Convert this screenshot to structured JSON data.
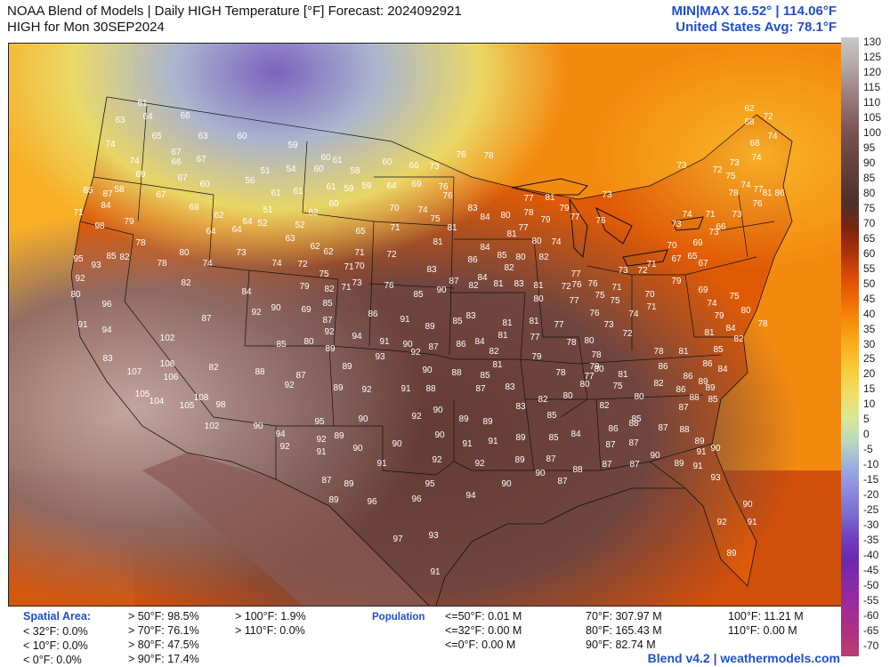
{
  "header": {
    "title_line1": "NOAA Blend of Models | Daily HIGH Temperature [°F] Forecast: 2024092921",
    "title_line2": "HIGH for Mon 30SEP2024",
    "minmax": "MIN|MAX 16.52°  |  114.06°F",
    "us_avg": "United States Avg: 78.1°F"
  },
  "colorbar": {
    "labels": [
      "130",
      "125",
      "120",
      "115",
      "110",
      "105",
      "100",
      "95",
      "90",
      "85",
      "80",
      "75",
      "70",
      "65",
      "60",
      "55",
      "50",
      "45",
      "40",
      "35",
      "30",
      "25",
      "20",
      "15",
      "10",
      "5",
      "0",
      "-5",
      "-10",
      "-15",
      "-20",
      "-25",
      "-30",
      "-35",
      "-40",
      "-45",
      "-50",
      "-55",
      "-60",
      "-65",
      "-70"
    ],
    "colors": [
      "#c9c9c9",
      "#b7aeae",
      "#a48c8c",
      "#8f6d6d",
      "#7a5252",
      "#6b4442",
      "#5c3a36",
      "#4f302b",
      "#7a2410",
      "#a83208",
      "#d84a05",
      "#ee6a05",
      "#f88f0a",
      "#fbb020",
      "#f9cc3a",
      "#eede6a",
      "#d8e896",
      "#b8d8c0",
      "#9ab0e0",
      "#8c8ce0",
      "#7a6fcf",
      "#7040c0",
      "#6a2ab0",
      "#8a2aa8",
      "#a02a9a",
      "#b03080",
      "#b84070"
    ]
  },
  "footer": {
    "spatial_title": "Spatial Area:",
    "spatial_col1": [
      "< 32°F: 0.0%",
      "< 10°F: 0.0%",
      "< 0°F: 0.0%"
    ],
    "spatial_col2": [
      "> 50°F: 98.5%",
      "> 70°F: 76.1%",
      "> 80°F: 47.5%",
      "> 90°F: 17.4%"
    ],
    "spatial_col3": [
      "> 100°F: 1.9%",
      "> 110°F: 0.0%"
    ],
    "population_title": "Population",
    "pop_col1": [
      "<=50°F: 0.01 M",
      "<=32°F: 0.00 M",
      "<=0°F: 0.00 M"
    ],
    "pop_col2": [
      "70°F: 307.97 M",
      "80°F: 165.43 M",
      "90°F: 82.74 M"
    ],
    "pop_col3": [
      "100°F: 11.21 M",
      "110°F: 0.00 M"
    ],
    "brand": "Blend v4.2 | weathermodels.com"
  },
  "map_labels": [
    [
      "61",
      160,
      115
    ],
    [
      "64",
      166,
      130
    ],
    [
      "66",
      208,
      129
    ],
    [
      "63",
      135,
      134
    ],
    [
      "65",
      176,
      152
    ],
    [
      "63",
      228,
      152
    ],
    [
      "74",
      124,
      161
    ],
    [
      "67",
      198,
      170
    ],
    [
      "60",
      272,
      152
    ],
    [
      "74",
      151,
      180
    ],
    [
      "66",
      198,
      181
    ],
    [
      "67",
      226,
      178
    ],
    [
      "59",
      329,
      162
    ],
    [
      "61",
      379,
      179
    ],
    [
      "60",
      366,
      176
    ],
    [
      "60",
      435,
      181
    ],
    [
      "66",
      465,
      185
    ],
    [
      "73",
      488,
      186
    ],
    [
      "76",
      518,
      173
    ],
    [
      "78",
      549,
      174
    ],
    [
      "69",
      158,
      195
    ],
    [
      "67",
      205,
      199
    ],
    [
      "60",
      230,
      206
    ],
    [
      "56",
      281,
      202
    ],
    [
      "51",
      298,
      191
    ],
    [
      "54",
      327,
      189
    ],
    [
      "60",
      358,
      189
    ],
    [
      "58",
      399,
      191
    ],
    [
      "61",
      310,
      216
    ],
    [
      "61",
      335,
      214
    ],
    [
      "61",
      372,
      209
    ],
    [
      "59",
      392,
      211
    ],
    [
      "59",
      412,
      208
    ],
    [
      "64",
      440,
      208
    ],
    [
      "69",
      468,
      206
    ],
    [
      "76",
      498,
      209
    ],
    [
      "85",
      99,
      213
    ],
    [
      "87",
      121,
      217
    ],
    [
      "58",
      134,
      212
    ],
    [
      "84",
      119,
      230
    ],
    [
      "71",
      88,
      238
    ],
    [
      "67",
      181,
      218
    ],
    [
      "68",
      218,
      232
    ],
    [
      "62",
      246,
      241
    ],
    [
      "64",
      278,
      248
    ],
    [
      "51",
      301,
      235
    ],
    [
      "52",
      295,
      250
    ],
    [
      "52",
      337,
      252
    ],
    [
      "62",
      352,
      238
    ],
    [
      "60",
      375,
      228
    ],
    [
      "76",
      503,
      219
    ],
    [
      "74",
      475,
      235
    ],
    [
      "70",
      443,
      233
    ],
    [
      "75",
      489,
      245
    ],
    [
      "83",
      531,
      233
    ],
    [
      "84",
      545,
      243
    ],
    [
      "80",
      568,
      241
    ],
    [
      "77",
      594,
      222
    ],
    [
      "78",
      594,
      238
    ],
    [
      "79",
      613,
      246
    ],
    [
      "81",
      618,
      221
    ],
    [
      "73",
      682,
      218
    ],
    [
      "77",
      588,
      255
    ],
    [
      "98",
      112,
      253
    ],
    [
      "79",
      145,
      248
    ],
    [
      "64",
      237,
      259
    ],
    [
      "64",
      266,
      257
    ],
    [
      "63",
      326,
      267
    ],
    [
      "62",
      354,
      276
    ],
    [
      "71",
      444,
      255
    ],
    [
      "65",
      405,
      259
    ],
    [
      "81",
      575,
      262
    ],
    [
      "81",
      508,
      255
    ],
    [
      "79",
      634,
      233
    ],
    [
      "77",
      646,
      243
    ],
    [
      "76",
      675,
      247
    ],
    [
      "81",
      492,
      271
    ],
    [
      "84",
      545,
      277
    ],
    [
      "80",
      603,
      270
    ],
    [
      "74",
      625,
      271
    ],
    [
      "78",
      158,
      272
    ],
    [
      "80",
      207,
      283
    ],
    [
      "73",
      271,
      283
    ],
    [
      "62",
      369,
      282
    ],
    [
      "71",
      404,
      283
    ],
    [
      "72",
      440,
      285
    ],
    [
      "95",
      88,
      290
    ],
    [
      "93",
      108,
      297
    ],
    [
      "85",
      125,
      287
    ],
    [
      "82",
      140,
      288
    ],
    [
      "78",
      182,
      295
    ],
    [
      "74",
      233,
      295
    ],
    [
      "74",
      311,
      295
    ],
    [
      "72",
      340,
      296
    ],
    [
      "75",
      364,
      307
    ],
    [
      "71",
      392,
      299
    ],
    [
      "70",
      404,
      298
    ],
    [
      "83",
      485,
      302
    ],
    [
      "86",
      531,
      291
    ],
    [
      "85",
      564,
      286
    ],
    [
      "82",
      572,
      300
    ],
    [
      "80",
      585,
      288
    ],
    [
      "82",
      611,
      288
    ],
    [
      "82",
      209,
      317
    ],
    [
      "79",
      342,
      321
    ],
    [
      "82",
      370,
      324
    ],
    [
      "73",
      401,
      317
    ],
    [
      "76",
      437,
      320
    ],
    [
      "87",
      510,
      315
    ],
    [
      "84",
      542,
      311
    ],
    [
      "81",
      560,
      318
    ],
    [
      "83",
      583,
      318
    ],
    [
      "81",
      605,
      320
    ],
    [
      "72",
      636,
      321
    ],
    [
      "77",
      647,
      307
    ],
    [
      "76",
      648,
      319
    ],
    [
      "76",
      666,
      318
    ],
    [
      "75",
      674,
      331
    ],
    [
      "92",
      90,
      312
    ],
    [
      "80",
      85,
      330
    ],
    [
      "96",
      120,
      341
    ],
    [
      "84",
      277,
      327
    ],
    [
      "90",
      310,
      345
    ],
    [
      "69",
      344,
      347
    ],
    [
      "85",
      368,
      340
    ],
    [
      "71",
      389,
      322
    ],
    [
      "85",
      470,
      330
    ],
    [
      "90",
      496,
      325
    ],
    [
      "82",
      532,
      320
    ],
    [
      "80",
      605,
      335
    ],
    [
      "77",
      645,
      337
    ],
    [
      "76",
      668,
      351
    ],
    [
      "75",
      691,
      337
    ],
    [
      "86",
      419,
      352
    ],
    [
      "91",
      455,
      358
    ],
    [
      "89",
      483,
      366
    ],
    [
      "85",
      514,
      360
    ],
    [
      "83",
      529,
      354
    ],
    [
      "81",
      570,
      362
    ],
    [
      "81",
      600,
      360
    ],
    [
      "92",
      288,
      350
    ],
    [
      "87",
      232,
      357
    ],
    [
      "91",
      93,
      364
    ],
    [
      "94",
      120,
      370
    ],
    [
      "87",
      368,
      359
    ],
    [
      "92",
      370,
      372
    ],
    [
      "90",
      458,
      386
    ],
    [
      "91",
      432,
      383
    ],
    [
      "87",
      487,
      389
    ],
    [
      "86",
      518,
      386
    ],
    [
      "84",
      539,
      383
    ],
    [
      "81",
      565,
      376
    ],
    [
      "77",
      601,
      378
    ],
    [
      "77",
      628,
      364
    ],
    [
      "80",
      662,
      382
    ],
    [
      "94",
      401,
      377
    ],
    [
      "85",
      316,
      386
    ],
    [
      "80",
      347,
      383
    ],
    [
      "89",
      371,
      391
    ],
    [
      "102",
      188,
      379
    ],
    [
      "93",
      427,
      400
    ],
    [
      "92",
      467,
      395
    ],
    [
      "82",
      555,
      394
    ],
    [
      "79",
      603,
      400
    ],
    [
      "81",
      559,
      409
    ],
    [
      "78",
      642,
      384
    ],
    [
      "78",
      670,
      398
    ],
    [
      "79",
      668,
      411
    ],
    [
      "83",
      121,
      402
    ],
    [
      "108",
      188,
      408
    ],
    [
      "107",
      151,
      417
    ],
    [
      "106",
      192,
      423
    ],
    [
      "82",
      240,
      412
    ],
    [
      "88",
      292,
      417
    ],
    [
      "87",
      338,
      421
    ],
    [
      "89",
      390,
      411
    ],
    [
      "90",
      480,
      415
    ],
    [
      "88",
      513,
      418
    ],
    [
      "85",
      545,
      421
    ],
    [
      "78",
      630,
      418
    ],
    [
      "80",
      657,
      431
    ],
    [
      "77",
      662,
      422
    ],
    [
      "80",
      673,
      414
    ],
    [
      "81",
      700,
      420
    ],
    [
      "92",
      325,
      432
    ],
    [
      "89",
      380,
      435
    ],
    [
      "92",
      412,
      437
    ],
    [
      "91",
      456,
      436
    ],
    [
      "88",
      484,
      436
    ],
    [
      "87",
      540,
      436
    ],
    [
      "83",
      573,
      434
    ],
    [
      "82",
      610,
      448
    ],
    [
      "80",
      638,
      444
    ],
    [
      "75",
      694,
      433
    ],
    [
      "105",
      160,
      442
    ],
    [
      "104",
      176,
      450
    ],
    [
      "108",
      226,
      446
    ],
    [
      "105",
      210,
      455
    ],
    [
      "98",
      248,
      454
    ],
    [
      "90",
      492,
      460
    ],
    [
      "92",
      468,
      467
    ],
    [
      "83",
      585,
      456
    ],
    [
      "85",
      620,
      466
    ],
    [
      "82",
      679,
      455
    ],
    [
      "80",
      718,
      445
    ],
    [
      "95",
      359,
      473
    ],
    [
      "90",
      408,
      470
    ],
    [
      "89",
      521,
      470
    ],
    [
      "89",
      548,
      473
    ],
    [
      "102",
      238,
      478
    ],
    [
      "90",
      290,
      478
    ],
    [
      "94",
      315,
      487
    ],
    [
      "89",
      381,
      489
    ],
    [
      "90",
      494,
      488
    ],
    [
      "91",
      525,
      498
    ],
    [
      "91",
      554,
      495
    ],
    [
      "85",
      622,
      491
    ],
    [
      "84",
      647,
      487
    ],
    [
      "86",
      689,
      481
    ],
    [
      "85",
      715,
      470
    ],
    [
      "92",
      320,
      501
    ],
    [
      "92",
      361,
      493
    ],
    [
      "91",
      361,
      507
    ],
    [
      "90",
      402,
      503
    ],
    [
      "90",
      446,
      498
    ],
    [
      "89",
      585,
      491
    ],
    [
      "87",
      686,
      499
    ],
    [
      "87",
      712,
      497
    ],
    [
      "91",
      429,
      520
    ],
    [
      "92",
      491,
      516
    ],
    [
      "92",
      539,
      520
    ],
    [
      "89",
      584,
      516
    ],
    [
      "87",
      619,
      515
    ],
    [
      "88",
      649,
      527
    ],
    [
      "90",
      607,
      531
    ],
    [
      "87",
      632,
      540
    ],
    [
      "87",
      682,
      521
    ],
    [
      "87",
      713,
      521
    ],
    [
      "90",
      736,
      511
    ],
    [
      "87",
      367,
      539
    ],
    [
      "89",
      392,
      543
    ],
    [
      "95",
      483,
      543
    ],
    [
      "90",
      569,
      543
    ],
    [
      "89",
      375,
      561
    ],
    [
      "96",
      418,
      563
    ],
    [
      "96",
      468,
      560
    ],
    [
      "94",
      529,
      556
    ],
    [
      "97",
      447,
      605
    ],
    [
      "93",
      487,
      601
    ],
    [
      "91",
      489,
      642
    ],
    [
      "68",
      842,
      136
    ],
    [
      "72",
      863,
      130
    ],
    [
      "74",
      868,
      152
    ],
    [
      "62",
      842,
      121
    ],
    [
      "68",
      848,
      160
    ],
    [
      "73",
      766,
      185
    ],
    [
      "72",
      806,
      190
    ],
    [
      "73",
      825,
      182
    ],
    [
      "74",
      850,
      176
    ],
    [
      "75",
      821,
      197
    ],
    [
      "74",
      838,
      207
    ],
    [
      "78",
      824,
      216
    ],
    [
      "77",
      852,
      212
    ],
    [
      "76",
      851,
      228
    ],
    [
      "81",
      862,
      216
    ],
    [
      "86",
      876,
      216
    ],
    [
      "73",
      828,
      240
    ],
    [
      "71",
      798,
      240
    ],
    [
      "74",
      772,
      240
    ],
    [
      "73",
      760,
      251
    ],
    [
      "66",
      810,
      254
    ],
    [
      "69",
      784,
      272
    ],
    [
      "70",
      755,
      275
    ],
    [
      "67",
      760,
      290
    ],
    [
      "65",
      778,
      287
    ],
    [
      "67",
      790,
      295
    ],
    [
      "73",
      802,
      260
    ],
    [
      "71",
      732,
      296
    ],
    [
      "72",
      722,
      303
    ],
    [
      "73",
      700,
      303
    ],
    [
      "71",
      693,
      322
    ],
    [
      "79",
      760,
      315
    ],
    [
      "69",
      790,
      325
    ],
    [
      "70",
      730,
      330
    ],
    [
      "74",
      712,
      352
    ],
    [
      "71",
      732,
      344
    ],
    [
      "73",
      684,
      364
    ],
    [
      "72",
      705,
      374
    ],
    [
      "75",
      825,
      332
    ],
    [
      "74",
      800,
      340
    ],
    [
      "79",
      808,
      354
    ],
    [
      "81",
      797,
      373
    ],
    [
      "84",
      821,
      368
    ],
    [
      "82",
      830,
      380
    ],
    [
      "80",
      838,
      348
    ],
    [
      "78",
      857,
      363
    ],
    [
      "85",
      807,
      392
    ],
    [
      "86",
      795,
      408
    ],
    [
      "84",
      812,
      414
    ],
    [
      "86",
      773,
      422
    ],
    [
      "89",
      790,
      428
    ],
    [
      "86",
      765,
      437
    ],
    [
      "89",
      798,
      435
    ],
    [
      "85",
      801,
      448
    ],
    [
      "86",
      745,
      411
    ],
    [
      "88",
      780,
      446
    ],
    [
      "87",
      768,
      457
    ],
    [
      "87",
      745,
      480
    ],
    [
      "88",
      769,
      482
    ],
    [
      "89",
      786,
      495
    ],
    [
      "91",
      788,
      507
    ],
    [
      "90",
      804,
      503
    ],
    [
      "89",
      763,
      520
    ],
    [
      "91",
      784,
      523
    ],
    [
      "93",
      804,
      536
    ],
    [
      "90",
      840,
      566
    ],
    [
      "91",
      845,
      586
    ],
    [
      "92",
      811,
      586
    ],
    [
      "89",
      822,
      621
    ],
    [
      "88",
      712,
      475
    ],
    [
      "82",
      740,
      430
    ],
    [
      "78",
      740,
      394
    ],
    [
      "81",
      768,
      394
    ]
  ]
}
